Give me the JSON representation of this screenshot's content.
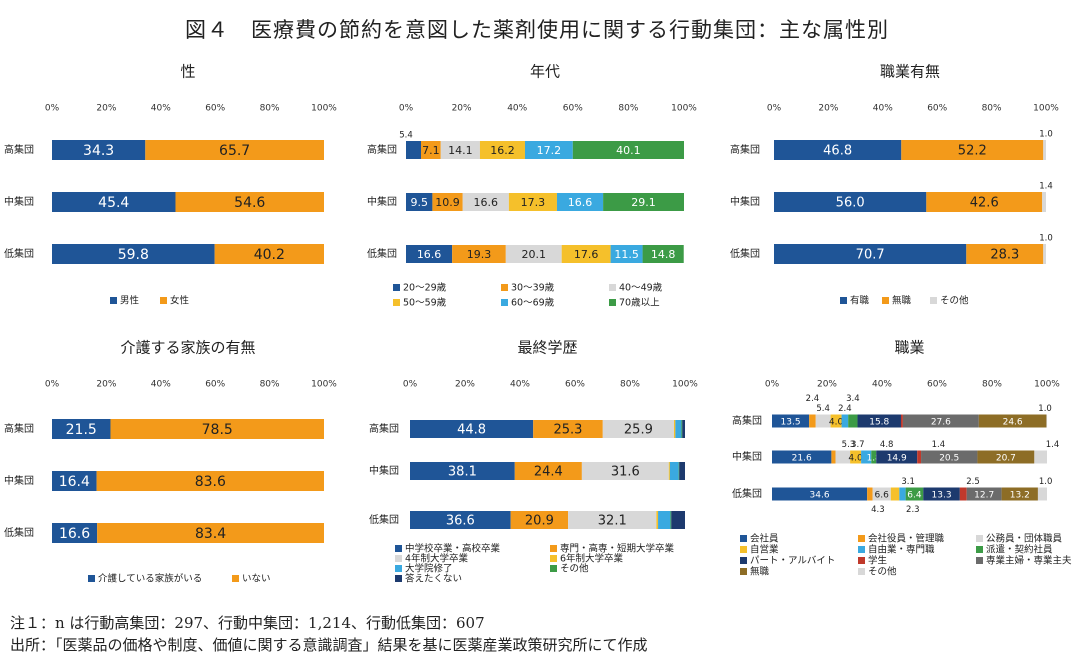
{
  "title": "図４　医療費の節約を意図した薬剤使用に関する行動集団：主な属性別",
  "notes": [
    "注１：n は行動高集団：297、行動中集団：1,214、行動低集団：607",
    "出所：「医薬品の価格や制度、価値に関する意識調査」結果を基に医薬産業政策研究所にて作成"
  ],
  "colors": {
    "blue": "#1f5597",
    "orange": "#f39a1a",
    "lightgray": "#d8d8d8",
    "yellow": "#f5c02b",
    "skyblue": "#3aa9e0",
    "green": "#3c9b46",
    "navy": "#1d3a6e",
    "red": "#c0392b",
    "gray": "#6b6b6b",
    "olive": "#8d6d26"
  },
  "chart_data": [
    {
      "id": "sex",
      "type": "bar",
      "stacked": true,
      "orientation": "horizontal",
      "title": "性",
      "xlim": [
        0,
        100
      ],
      "xticks": [
        "0%",
        "20%",
        "40%",
        "60%",
        "80%",
        "100%"
      ],
      "categories": [
        "高集団",
        "中集団",
        "低集団"
      ],
      "series": [
        {
          "name": "男性",
          "color": "blue",
          "values": [
            34.3,
            45.4,
            59.8
          ],
          "labels": [
            "34.3",
            "45.4",
            "59.8"
          ]
        },
        {
          "name": "女性",
          "color": "orange",
          "values": [
            65.7,
            54.6,
            40.2
          ],
          "labels": [
            "65.7",
            "54.6",
            "40.2"
          ]
        }
      ],
      "legend": "bottom"
    },
    {
      "id": "age",
      "type": "bar",
      "stacked": true,
      "orientation": "horizontal",
      "title": "年代",
      "xlim": [
        0,
        100
      ],
      "xticks": [
        "0%",
        "20%",
        "40%",
        "60%",
        "80%",
        "100%"
      ],
      "categories": [
        "高集団",
        "中集団",
        "低集団"
      ],
      "series": [
        {
          "name": "20～29歳",
          "color": "blue",
          "values": [
            5.4,
            9.5,
            16.6
          ],
          "labels": [
            "",
            "9.5",
            "16.6"
          ]
        },
        {
          "name": "30～39歳",
          "color": "orange",
          "values": [
            7.1,
            10.9,
            19.3
          ],
          "labels": [
            "7.1",
            "10.9",
            "19.3"
          ]
        },
        {
          "name": "40～49歳",
          "color": "lightgray",
          "values": [
            14.1,
            16.6,
            20.1
          ],
          "labels": [
            "14.1",
            "16.6",
            "20.1"
          ]
        },
        {
          "name": "50～59歳",
          "color": "yellow",
          "values": [
            16.2,
            17.3,
            17.6
          ],
          "labels": [
            "16.2",
            "17.3",
            "17.6"
          ]
        },
        {
          "name": "60～69歳",
          "color": "skyblue",
          "values": [
            17.2,
            16.6,
            11.5
          ],
          "labels": [
            "17.2",
            "16.6",
            "11.5"
          ]
        },
        {
          "name": "70歳以上",
          "color": "green",
          "values": [
            40.1,
            29.1,
            14.8
          ],
          "labels": [
            "40.1",
            "29.1",
            "14.8"
          ]
        }
      ],
      "annotations": [
        {
          "text": "5.4",
          "category": 0,
          "at": 0
        }
      ],
      "legend": "bottom"
    },
    {
      "id": "employment",
      "type": "bar",
      "stacked": true,
      "orientation": "horizontal",
      "title": "職業有無",
      "xlim": [
        0,
        100
      ],
      "xticks": [
        "0%",
        "20%",
        "40%",
        "60%",
        "80%",
        "100%"
      ],
      "categories": [
        "高集団",
        "中集団",
        "低集団"
      ],
      "series": [
        {
          "name": "有職",
          "color": "blue",
          "values": [
            46.8,
            56.0,
            70.7
          ],
          "labels": [
            "46.8",
            "56.0",
            "70.7"
          ]
        },
        {
          "name": "無職",
          "color": "orange",
          "values": [
            52.2,
            42.6,
            28.3
          ],
          "labels": [
            "52.2",
            "42.6",
            "28.3"
          ]
        },
        {
          "name": "その他",
          "color": "lightgray",
          "values": [
            1.0,
            1.4,
            1.0
          ],
          "labels": [
            "",
            "",
            ""
          ]
        }
      ],
      "annotations": [
        {
          "text": "1.0",
          "category": 0,
          "at": 100
        },
        {
          "text": "1.4",
          "category": 1,
          "at": 100
        },
        {
          "text": "1.0",
          "category": 2,
          "at": 100
        }
      ],
      "legend": "bottom"
    },
    {
      "id": "caregiving",
      "type": "bar",
      "stacked": true,
      "orientation": "horizontal",
      "title": "介護する家族の有無",
      "xlim": [
        0,
        100
      ],
      "xticks": [
        "0%",
        "20%",
        "40%",
        "60%",
        "80%",
        "100%"
      ],
      "categories": [
        "高集団",
        "中集団",
        "低集団"
      ],
      "series": [
        {
          "name": "介護している家族がいる",
          "color": "blue",
          "values": [
            21.5,
            16.4,
            16.6
          ],
          "labels": [
            "21.5",
            "16.4",
            "16.6"
          ]
        },
        {
          "name": "いない",
          "color": "orange",
          "values": [
            78.5,
            83.6,
            83.4
          ],
          "labels": [
            "78.5",
            "83.6",
            "83.4"
          ]
        }
      ],
      "legend": "bottom"
    },
    {
      "id": "education",
      "type": "bar",
      "stacked": true,
      "orientation": "horizontal",
      "title": "最終学歴",
      "xlim": [
        0,
        100
      ],
      "xticks": [
        "0%",
        "20%",
        "40%",
        "60%",
        "80%",
        "100%"
      ],
      "categories": [
        "高集団",
        "中集団",
        "低集団"
      ],
      "series": [
        {
          "name": "中学校卒業・高校卒業",
          "color": "blue",
          "values": [
            44.8,
            38.1,
            36.6
          ],
          "labels": [
            "44.8",
            "38.1",
            "36.6"
          ]
        },
        {
          "name": "専門・高専・短期大学卒業",
          "color": "orange",
          "values": [
            25.3,
            24.4,
            20.9
          ],
          "labels": [
            "25.3",
            "24.4",
            "20.9"
          ]
        },
        {
          "name": "4年制大学卒業",
          "color": "lightgray",
          "values": [
            25.9,
            31.6,
            32.1
          ],
          "labels": [
            "25.9",
            "31.6",
            "32.1"
          ]
        },
        {
          "name": "6年制大学卒業",
          "color": "yellow",
          "values": [
            0.5,
            0.4,
            0.6
          ],
          "labels": [
            "",
            "",
            ""
          ]
        },
        {
          "name": "大学院修了",
          "color": "skyblue",
          "values": [
            2.2,
            3.2,
            4.5
          ],
          "labels": [
            "",
            "",
            ""
          ]
        },
        {
          "name": "その他",
          "color": "green",
          "values": [
            0.3,
            0.2,
            0.3
          ],
          "labels": [
            "",
            "",
            ""
          ]
        },
        {
          "name": "答えたくない",
          "color": "navy",
          "values": [
            1.0,
            2.1,
            5.0
          ],
          "labels": [
            "",
            "",
            ""
          ]
        }
      ],
      "legend": "bottom"
    },
    {
      "id": "occupation",
      "type": "bar",
      "stacked": true,
      "orientation": "horizontal",
      "title": "職業",
      "xlim": [
        0,
        100
      ],
      "xticks": [
        "0%",
        "20%",
        "40%",
        "60%",
        "80%",
        "100%"
      ],
      "categories": [
        "高集団",
        "中集団",
        "低集団"
      ],
      "series": [
        {
          "name": "会社員",
          "color": "blue",
          "values": [
            13.5,
            21.6,
            34.6
          ],
          "labels": [
            "13.5",
            "21.6",
            "34.6"
          ]
        },
        {
          "name": "会社役員・管理職",
          "color": "orange",
          "values": [
            2.4,
            1.5,
            2.0
          ],
          "labels": [
            "",
            "",
            ""
          ]
        },
        {
          "name": "公務員・団体職員",
          "color": "lightgray",
          "values": [
            5.4,
            5.3,
            6.6
          ],
          "labels": [
            "",
            "",
            "6.6"
          ]
        },
        {
          "name": "自営業",
          "color": "yellow",
          "values": [
            4.0,
            4.0,
            3.1
          ],
          "labels": [
            "4.0",
            "4.0",
            ""
          ]
        },
        {
          "name": "自由業・専門職",
          "color": "skyblue",
          "values": [
            2.4,
            3.7,
            2.3
          ],
          "labels": [
            "",
            "",
            ""
          ]
        },
        {
          "name": "派遣・契約社員",
          "color": "green",
          "values": [
            3.4,
            1.8,
            6.4
          ],
          "labels": [
            "",
            "1.8",
            "6.4"
          ]
        },
        {
          "name": "パート・アルバイト",
          "color": "navy",
          "values": [
            15.8,
            14.9,
            13.3
          ],
          "labels": [
            "15.8",
            "14.9",
            "13.3"
          ]
        },
        {
          "name": "学生",
          "color": "red",
          "values": [
            0.7,
            1.4,
            2.5
          ],
          "labels": [
            "",
            "",
            ""
          ]
        },
        {
          "name": "専業主婦・専業主夫",
          "color": "gray",
          "values": [
            27.6,
            20.5,
            12.7
          ],
          "labels": [
            "27.6",
            "20.5",
            "12.7"
          ]
        },
        {
          "name": "無職",
          "color": "olive",
          "values": [
            24.6,
            20.7,
            13.2
          ],
          "labels": [
            "24.6",
            "20.7",
            "13.2"
          ]
        },
        {
          "name": "その他",
          "color": "lightgray",
          "values": [
            0.2,
            4.6,
            3.3
          ],
          "labels": [
            "",
            "",
            ""
          ]
        }
      ],
      "annotations": [
        {
          "text": "2.4",
          "category": 0,
          "at": 14.7,
          "above": 2
        },
        {
          "text": "5.4",
          "category": 0,
          "at": 18.6,
          "above": 1
        },
        {
          "text": "2.4",
          "category": 0,
          "at": 26.5,
          "above": 1
        },
        {
          "text": "3.4",
          "category": 0,
          "at": 29.4,
          "above": 2
        },
        {
          "text": "1.0",
          "category": 0,
          "at": 99.3,
          "above": 1
        },
        {
          "text": "5.3",
          "category": 1,
          "at": 27.8,
          "above": 1
        },
        {
          "text": "3.7",
          "category": 1,
          "at": 31.2,
          "above": 1
        },
        {
          "text": "4.8",
          "category": 1,
          "at": 41.7,
          "above": 1
        },
        {
          "text": "1.4",
          "category": 1,
          "at": 60.5,
          "above": 1
        },
        {
          "text": "1.4",
          "category": 1,
          "at": 102,
          "above": 1
        },
        {
          "text": "3.1",
          "category": 2,
          "at": 49.5,
          "above": 1
        },
        {
          "text": "2.5",
          "category": 2,
          "at": 73.1,
          "above": 1
        },
        {
          "text": "1.0",
          "category": 2,
          "at": 99.5,
          "above": 1
        },
        {
          "text": "4.3",
          "category": 2,
          "at": 38.5,
          "below": 1
        },
        {
          "text": "2.3",
          "category": 2,
          "at": 51.2,
          "below": 1
        }
      ],
      "legend": "bottom"
    }
  ]
}
